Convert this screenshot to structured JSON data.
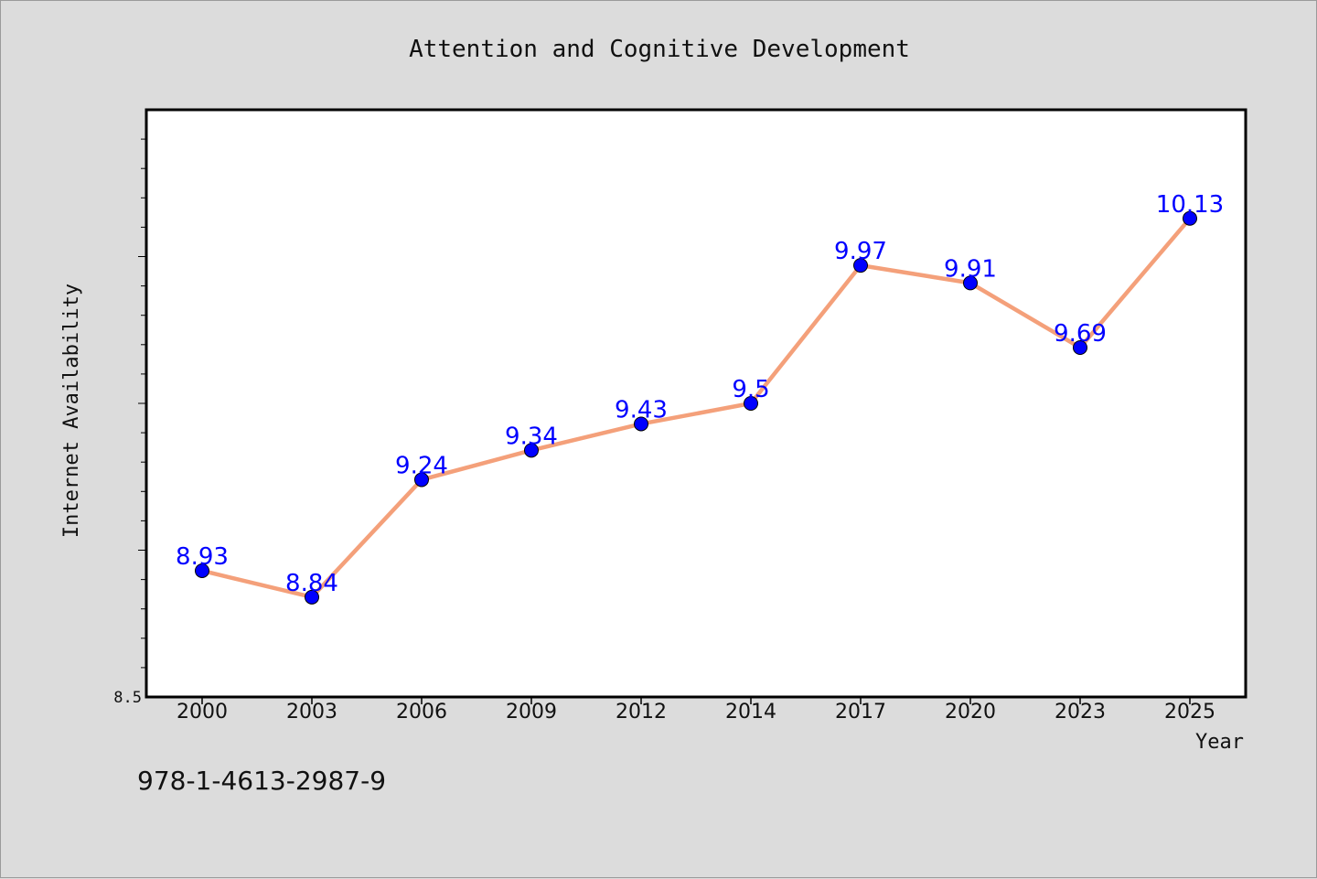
{
  "chart_data": {
    "type": "line",
    "title": "Attention and Cognitive Development",
    "xlabel": "Year",
    "ylabel": "Internet Availability",
    "categories": [
      "2000",
      "2003",
      "2006",
      "2009",
      "2012",
      "2014",
      "2017",
      "2020",
      "2023",
      "2025"
    ],
    "series": [
      {
        "values": [
          8.93,
          8.84,
          9.24,
          9.34,
          9.43,
          9.5,
          9.97,
          9.91,
          9.69,
          10.13
        ]
      }
    ],
    "data_labels": [
      "8.93",
      "8.84",
      "9.24",
      "9.34",
      "9.43",
      "9.5",
      "9.97",
      "9.91",
      "9.69",
      "10.13"
    ],
    "y_tick_labels": [
      "8.5"
    ],
    "ylim": [
      8.5,
      10.5
    ],
    "grid": false,
    "colors": {
      "line": "#f4a07a",
      "marker": "#0000ff",
      "data_label": "#0000ff",
      "background": "#dcdcdc",
      "plot_bg": "#ffffff"
    }
  },
  "footer_text": "978-1-4613-2987-9"
}
